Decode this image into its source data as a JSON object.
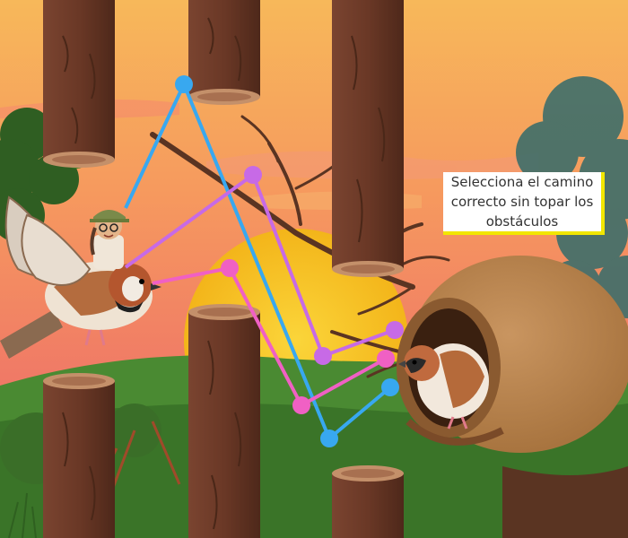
{
  "instruction": {
    "text": "Selecciona el camino correcto sin topar los obstáculos",
    "accent_color": "#f2e600"
  },
  "scene": {
    "sky_colors": [
      "#f7b25a",
      "#f48a63",
      "#e66a6a"
    ],
    "sun_color": "#f7c21a",
    "hill_color": "#3f7c2c",
    "trunk_color": "#6b3a26",
    "nest_color": "#b8834e"
  },
  "player": {
    "character": "bird-with-rider",
    "icons": [
      "sparrow-icon",
      "avatar-rider-icon"
    ]
  },
  "goal": {
    "character": "nest-with-sparrow",
    "icons": [
      "nest-icon",
      "sparrow-icon"
    ]
  },
  "paths": [
    {
      "name": "blue",
      "color": "#38a8f0",
      "node_count": 3
    },
    {
      "name": "purple",
      "color": "#c76ae6",
      "node_count": 4
    },
    {
      "name": "pink",
      "color": "#f060c4",
      "node_count": 3
    }
  ]
}
